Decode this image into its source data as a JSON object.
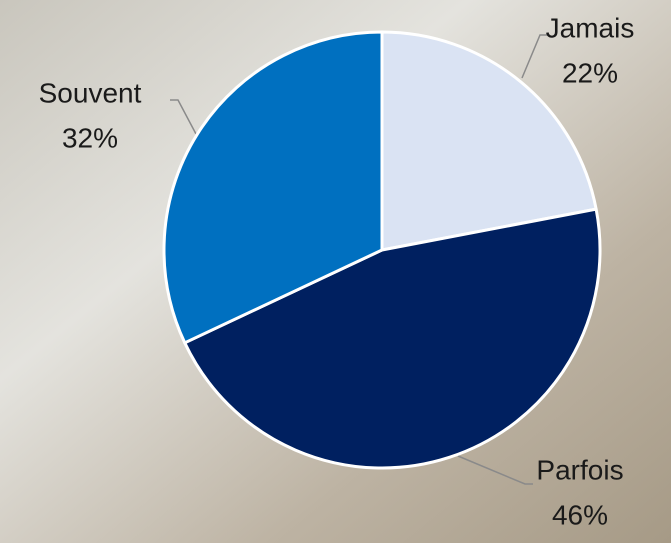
{
  "chart_data": {
    "type": "pie",
    "categories": [
      "Jamais",
      "Parfois",
      "Souvent"
    ],
    "values": [
      22,
      46,
      32
    ],
    "value_labels": [
      "22%",
      "46%",
      "32%"
    ],
    "colors": [
      "#dae3f3",
      "#002060",
      "#0070c0"
    ]
  }
}
